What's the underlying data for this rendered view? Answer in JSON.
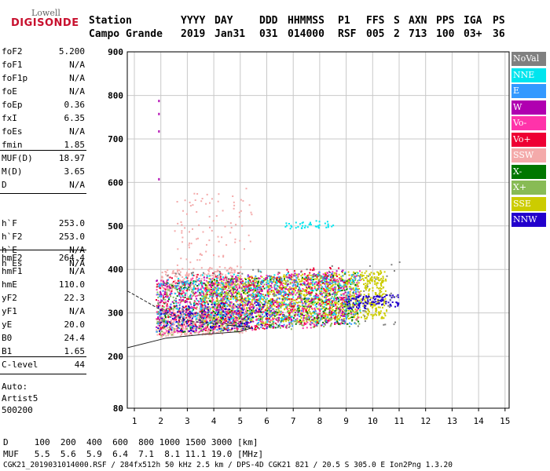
{
  "logo": {
    "top": "Lowell",
    "bottom": "DIGISONDE"
  },
  "header": {
    "row1": [
      "Station",
      "YYYY",
      "DAY",
      "DDD",
      "HHMMSS",
      "P1",
      "FFS",
      "S",
      "AXN",
      "PPS",
      "IGA",
      "PS"
    ],
    "row2": [
      "Campo Grande",
      "2019",
      "Jan31",
      "031",
      "014000",
      "RSF",
      "005",
      "2",
      "713",
      "100",
      "03+",
      "36"
    ]
  },
  "side": {
    "group1": [
      {
        "label": "foF2",
        "value": "5.200"
      },
      {
        "label": "foF1",
        "value": "N/A"
      },
      {
        "label": "foF1p",
        "value": "N/A"
      },
      {
        "label": "foE",
        "value": "N/A"
      },
      {
        "label": "foEp",
        "value": "0.36"
      },
      {
        "label": "fxI",
        "value": "6.35"
      },
      {
        "label": "foEs",
        "value": "N/A"
      },
      {
        "label": "fmin",
        "value": "1.85"
      }
    ],
    "group2": [
      {
        "label": "MUF(D)",
        "value": "18.97"
      },
      {
        "label": "M(D)",
        "value": "3.65"
      },
      {
        "label": "D",
        "value": "N/A"
      }
    ],
    "group3": [
      {
        "label": "h`F",
        "value": "253.0"
      },
      {
        "label": "h`F2",
        "value": "253.0"
      },
      {
        "label": "h`E",
        "value": "N/A"
      },
      {
        "label": "h`Es",
        "value": "N/A"
      }
    ],
    "group4": [
      {
        "label": "hmF2",
        "value": "264.4"
      },
      {
        "label": "hmF1",
        "value": "N/A"
      },
      {
        "label": "hmE",
        "value": "110.0"
      },
      {
        "label": "yF2",
        "value": "22.3"
      },
      {
        "label": "yF1",
        "value": "N/A"
      },
      {
        "label": "yE",
        "value": "20.0"
      },
      {
        "label": "B0",
        "value": "24.4"
      },
      {
        "label": "B1",
        "value": "1.65"
      }
    ],
    "group5": [
      {
        "label": "C-level",
        "value": "44"
      }
    ],
    "auto": [
      "Auto:",
      "Artist5",
      "500200"
    ]
  },
  "legend": [
    {
      "label": "NoVal",
      "color": "#808080"
    },
    {
      "label": "NNE",
      "color": "#00e5ee"
    },
    {
      "label": "E",
      "color": "#3399ff"
    },
    {
      "label": "W",
      "color": "#b000b0"
    },
    {
      "label": "Vo-",
      "color": "#ff33aa"
    },
    {
      "label": "Vo+",
      "color": "#ee0033"
    },
    {
      "label": "SSW",
      "color": "#f4aaaa"
    },
    {
      "label": "X-",
      "color": "#007700"
    },
    {
      "label": "X+",
      "color": "#88bb55"
    },
    {
      "label": "SSE",
      "color": "#cccc00"
    },
    {
      "label": "NNW",
      "color": "#2200cc"
    }
  ],
  "footer": {
    "d_row": "D     100  200  400  600  800 1000 1500 3000 [km]",
    "muf_row": "MUF   5.5  5.6  5.9  6.4  7.1  8.1 11.1 19.0 [MHz]",
    "info": "CGK21_2019031014000.RSF / 284fx512h 50 kHz 2.5 km / DPS-4D CGK21 821 / 20.5 S 305.0 E Ion2Png 1.3.20"
  },
  "chart_data": {
    "type": "scatter",
    "x_ticks": [
      1,
      2,
      3,
      4,
      5,
      6,
      7,
      8,
      9,
      10,
      11,
      12,
      13,
      14,
      15
    ],
    "y_ticks": [
      80,
      200,
      300,
      400,
      500,
      600,
      700,
      800,
      900
    ],
    "xlim": [
      0.75,
      15.1
    ],
    "ylim": [
      80,
      900
    ],
    "grid": true,
    "legend_placement": "right",
    "clusters": [
      {
        "series": "SSE",
        "x": [
          3.5,
          10.5
        ],
        "y": [
          270,
          400
        ],
        "n": 1400
      },
      {
        "series": "SSW",
        "x": [
          1.8,
          5.2
        ],
        "y": [
          245,
          320
        ],
        "n": 500
      },
      {
        "series": "SSW",
        "x": [
          2.0,
          5.0
        ],
        "y": [
          350,
          410
        ],
        "n": 250
      },
      {
        "series": "SSW",
        "x": [
          2.5,
          5.5
        ],
        "y": [
          410,
          600
        ],
        "n": 90
      },
      {
        "series": "X+",
        "x": [
          1.8,
          9.5
        ],
        "y": [
          250,
          390
        ],
        "n": 600
      },
      {
        "series": "X-",
        "x": [
          2.0,
          9.5
        ],
        "y": [
          255,
          395
        ],
        "n": 350
      },
      {
        "series": "Vo+",
        "x": [
          1.8,
          9.0
        ],
        "y": [
          250,
          410
        ],
        "n": 450
      },
      {
        "series": "Vo-",
        "x": [
          1.8,
          9.5
        ],
        "y": [
          250,
          400
        ],
        "n": 450
      },
      {
        "series": "W",
        "x": [
          1.8,
          9.0
        ],
        "y": [
          255,
          400
        ],
        "n": 350
      },
      {
        "series": "E",
        "x": [
          1.8,
          9.5
        ],
        "y": [
          255,
          400
        ],
        "n": 350
      },
      {
        "series": "NNE",
        "x": [
          2.5,
          9.5
        ],
        "y": [
          265,
          410
        ],
        "n": 220
      },
      {
        "series": "NNE",
        "x": [
          6.5,
          8.5
        ],
        "y": [
          495,
          515
        ],
        "n": 40
      },
      {
        "series": "NNW",
        "x": [
          9.0,
          11.0
        ],
        "y": [
          310,
          345
        ],
        "n": 120
      },
      {
        "series": "NNW",
        "x": [
          1.8,
          6.0
        ],
        "y": [
          255,
          330
        ],
        "n": 150
      },
      {
        "series": "NoVal",
        "x": [
          1.8,
          11.0
        ],
        "y": [
          250,
          420
        ],
        "n": 150
      }
    ],
    "points": [
      {
        "series": "W",
        "x": 1.9,
        "y": 790
      },
      {
        "series": "W",
        "x": 1.9,
        "y": 760
      },
      {
        "series": "W",
        "x": 1.9,
        "y": 720
      },
      {
        "series": "W",
        "x": 1.9,
        "y": 610
      }
    ],
    "trace": {
      "upper": [
        [
          0.75,
          350
        ],
        [
          2.2,
          300
        ],
        [
          3.2,
          280
        ],
        [
          4.5,
          275
        ],
        [
          5.0,
          280
        ],
        [
          5.4,
          300
        ]
      ],
      "lower": [
        [
          0.75,
          220
        ],
        [
          2.2,
          242
        ],
        [
          3.5,
          250
        ],
        [
          5.0,
          257
        ],
        [
          5.4,
          265
        ],
        [
          5.2,
          268
        ],
        [
          4.5,
          272
        ]
      ]
    }
  }
}
